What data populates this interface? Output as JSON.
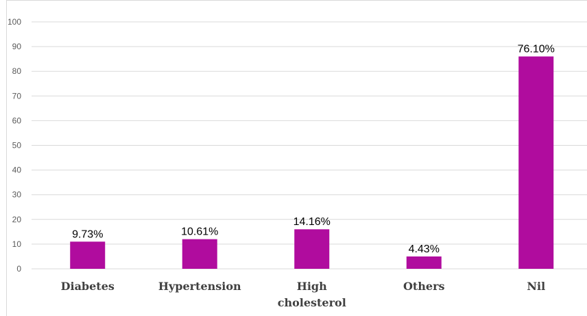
{
  "chart_data": {
    "type": "bar",
    "categories": [
      "Diabetes",
      "Hypertension",
      "High cholesterol",
      "Others",
      "Nil"
    ],
    "category_lines": [
      [
        "Diabetes"
      ],
      [
        "Hypertension"
      ],
      [
        "High",
        "cholesterol"
      ],
      [
        "Others"
      ],
      [
        "Nil"
      ]
    ],
    "values": [
      11,
      12,
      16,
      5,
      86
    ],
    "data_labels": [
      "9.73%",
      "10.61%",
      "14.16%",
      "4.43%",
      "76.10%"
    ],
    "ylim": [
      0,
      100
    ],
    "yticks": [
      0,
      10,
      20,
      30,
      40,
      50,
      60,
      70,
      80,
      90,
      100
    ],
    "title": "",
    "xlabel": "",
    "ylabel": "",
    "grid": true,
    "legend": "none",
    "bar_color": "#b00c9e",
    "grid_color": "#d9d9d9",
    "tick_color": "#595959"
  }
}
